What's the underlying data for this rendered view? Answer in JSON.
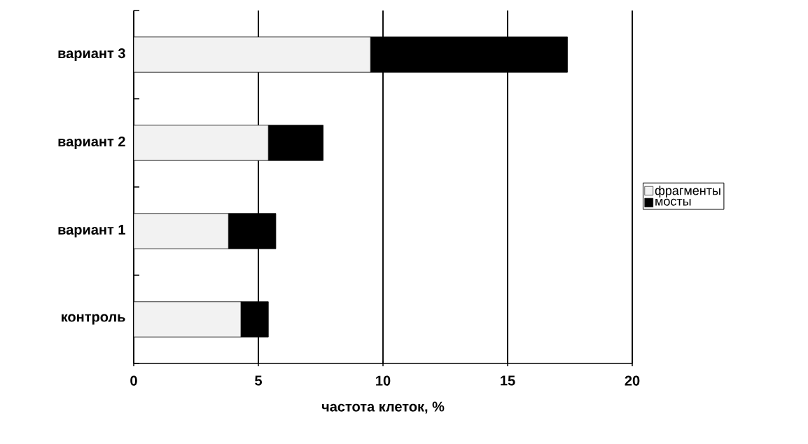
{
  "chart_data": {
    "type": "bar",
    "orientation": "horizontal",
    "stacked": true,
    "categories": [
      "вариант 3",
      "вариант 2",
      "вариант 1",
      "контроль"
    ],
    "series": [
      {
        "name": "фрагменты",
        "color": "#f2f2f2",
        "values": [
          9.5,
          5.4,
          3.8,
          4.3
        ]
      },
      {
        "name": "мосты",
        "color": "#000000",
        "values": [
          7.9,
          2.2,
          1.9,
          1.1
        ]
      }
    ],
    "xlim": [
      0,
      20
    ],
    "xticks": [
      0,
      5,
      10,
      15,
      20
    ],
    "xlabel": "частота клеток, %",
    "grid": "x",
    "legend": "right"
  }
}
